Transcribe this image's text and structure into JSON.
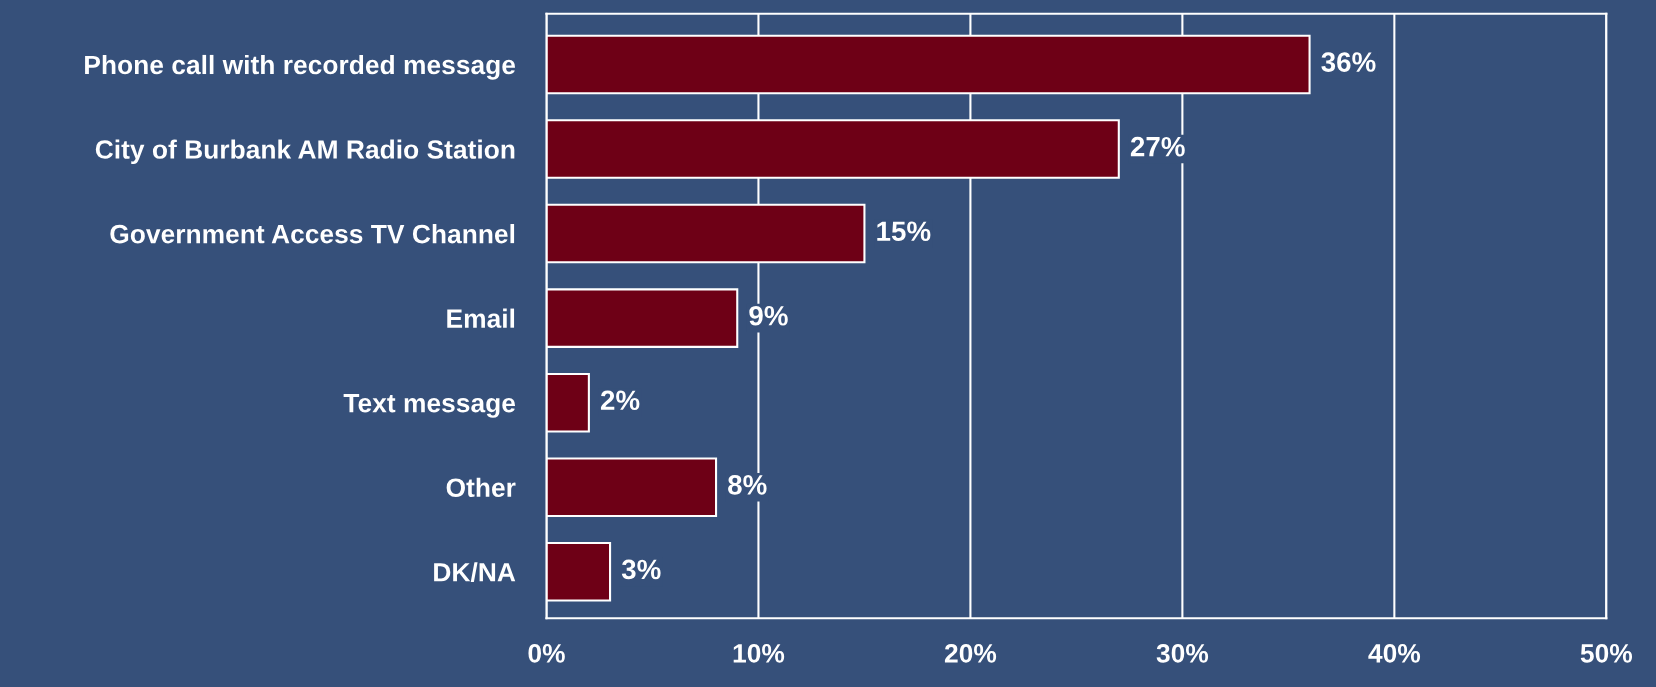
{
  "chart_data": {
    "type": "bar",
    "orientation": "horizontal",
    "categories": [
      "Phone call with recorded message",
      "City of Burbank AM Radio Station",
      "Government Access TV Channel",
      "Email",
      "Text message",
      "Other",
      "DK/NA"
    ],
    "values": [
      36,
      27,
      15,
      9,
      2,
      8,
      3
    ],
    "value_labels": [
      "36%",
      "27%",
      "15%",
      "9%",
      "2%",
      "8%",
      "3%"
    ],
    "color": "#6e0016",
    "xlim": [
      0,
      50
    ],
    "xticks": [
      {
        "value": 0,
        "label": "0%"
      },
      {
        "value": 10,
        "label": "10%"
      },
      {
        "value": 20,
        "label": "20%"
      },
      {
        "value": 30,
        "label": "30%"
      },
      {
        "value": 40,
        "label": "40%"
      },
      {
        "value": 50,
        "label": "50%"
      }
    ],
    "grid": "x"
  }
}
